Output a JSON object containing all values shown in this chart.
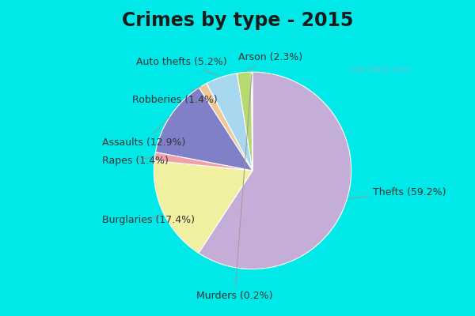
{
  "title": "Crimes by type - 2015",
  "labels": [
    "Thefts",
    "Burglaries",
    "Rapes",
    "Assaults",
    "Robberies",
    "Auto thefts",
    "Arson",
    "Murders"
  ],
  "values": [
    59.2,
    17.4,
    1.4,
    12.9,
    1.4,
    5.2,
    2.3,
    0.2
  ],
  "colors": [
    "#c4aed8",
    "#f0f0a0",
    "#f0a0a8",
    "#8080c8",
    "#f0c898",
    "#a8d8f0",
    "#b8d870",
    "#c8c8c8"
  ],
  "background_outer": "#00e8e8",
  "background_inner": "#e0f0e8",
  "title_fontsize": 17,
  "label_fontsize": 9,
  "startangle": 90,
  "watermark": "City-Data.com"
}
